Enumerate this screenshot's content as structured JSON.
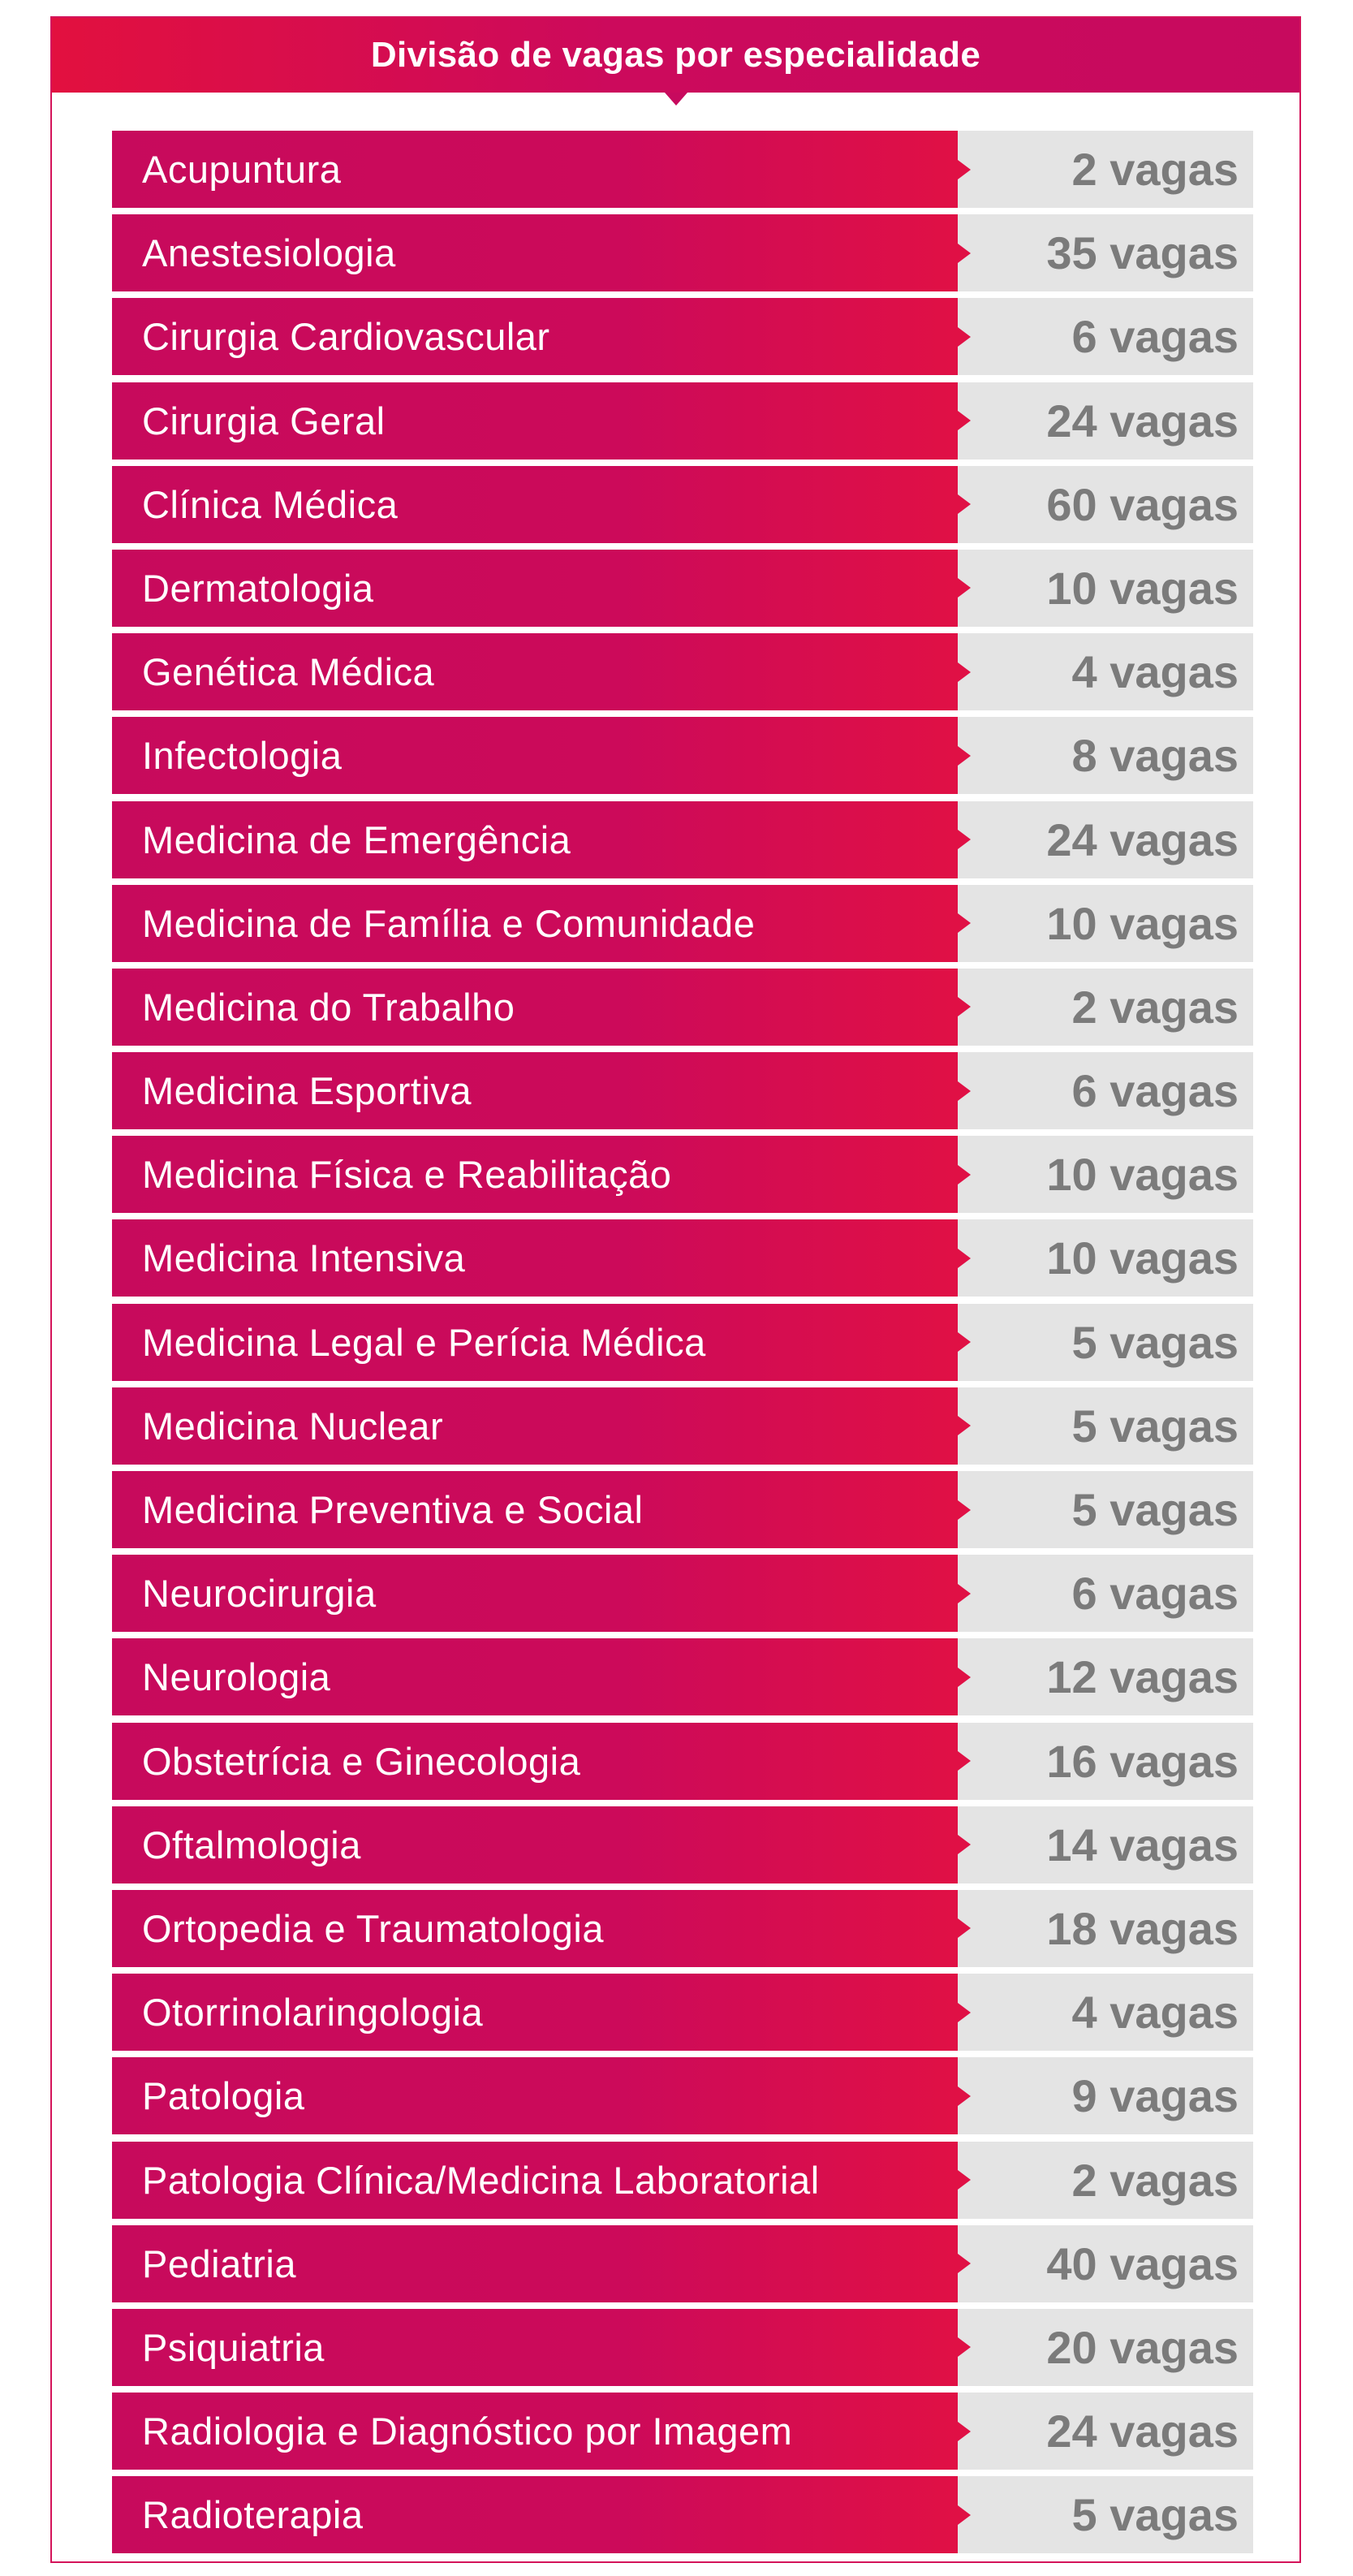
{
  "title": "Divisão de vagas por especialidade",
  "colors": {
    "accent": "#c70a5e",
    "accent_light": "#e2103f",
    "count_bg": "#e4e4e4",
    "count_text": "#7b7b7b"
  },
  "rows": [
    {
      "name": "Acupuntura",
      "count": "2 vagas"
    },
    {
      "name": "Anestesiologia",
      "count": "35 vagas"
    },
    {
      "name": "Cirurgia Cardiovascular",
      "count": "6 vagas"
    },
    {
      "name": "Cirurgia Geral",
      "count": "24 vagas"
    },
    {
      "name": "Clínica Médica",
      "count": "60 vagas"
    },
    {
      "name": "Dermatologia",
      "count": "10 vagas"
    },
    {
      "name": "Genética Médica",
      "count": "4 vagas"
    },
    {
      "name": "Infectologia",
      "count": "8 vagas"
    },
    {
      "name": "Medicina de Emergência",
      "count": "24 vagas"
    },
    {
      "name": "Medicina de Família e Comunidade",
      "count": "10 vagas"
    },
    {
      "name": "Medicina do Trabalho",
      "count": "2 vagas"
    },
    {
      "name": "Medicina Esportiva",
      "count": "6 vagas"
    },
    {
      "name": "Medicina Física e Reabilitação",
      "count": "10 vagas"
    },
    {
      "name": "Medicina Intensiva",
      "count": "10 vagas"
    },
    {
      "name": "Medicina Legal e Perícia Médica",
      "count": "5 vagas"
    },
    {
      "name": "Medicina Nuclear",
      "count": "5 vagas"
    },
    {
      "name": "Medicina Preventiva e Social",
      "count": "5 vagas"
    },
    {
      "name": "Neurocirurgia",
      "count": "6 vagas"
    },
    {
      "name": "Neurologia",
      "count": "12 vagas"
    },
    {
      "name": "Obstetrícia e Ginecologia",
      "count": "16 vagas"
    },
    {
      "name": "Oftalmologia",
      "count": "14 vagas"
    },
    {
      "name": "Ortopedia e Traumatologia",
      "count": "18 vagas"
    },
    {
      "name": "Otorrinolaringologia",
      "count": "4 vagas"
    },
    {
      "name": "Patologia",
      "count": "9 vagas"
    },
    {
      "name": "Patologia Clínica/Medicina Laboratorial",
      "count": "2 vagas"
    },
    {
      "name": "Pediatria",
      "count": "40 vagas"
    },
    {
      "name": "Psiquiatria",
      "count": "20 vagas"
    },
    {
      "name": "Radiologia e Diagnóstico por Imagem",
      "count": "24 vagas"
    },
    {
      "name": "Radioterapia",
      "count": "5 vagas"
    }
  ]
}
